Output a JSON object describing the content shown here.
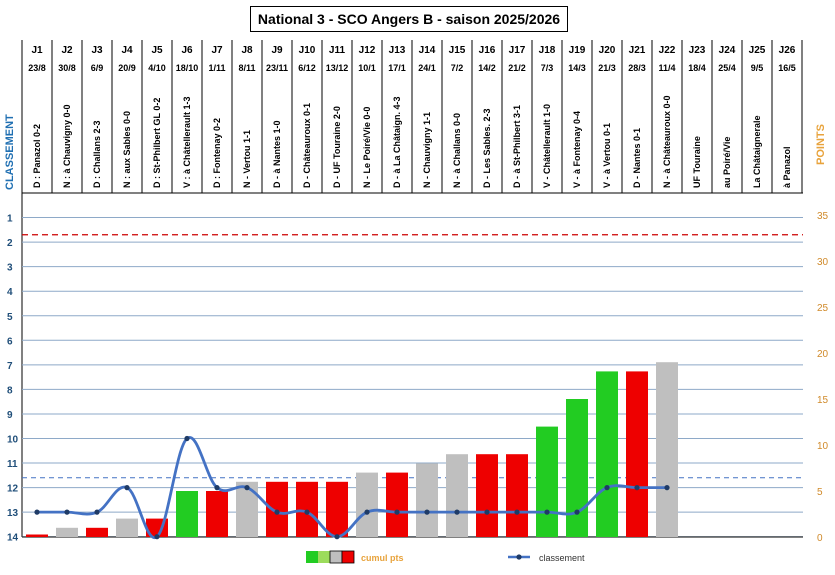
{
  "title": "National 3 - SCO Angers B - saison 2025/2026",
  "left_axis_label": "CLASSEMENT",
  "right_axis_label": "POINTS",
  "legend": {
    "bars_label": "cumul pts",
    "line_label": "classement"
  },
  "colors": {
    "win": "#22cc22",
    "draw": "#bfbfbf",
    "loss": "#ee0000",
    "line": "#4472c4",
    "danger": "#cc0000",
    "grid": "#8ea9c8"
  },
  "chart_data": {
    "type": "bar+line",
    "left_axis": {
      "label": "CLASSEMENT",
      "range": [
        0,
        14
      ],
      "reversed": true,
      "ticks": [
        1,
        2,
        3,
        4,
        5,
        6,
        7,
        8,
        9,
        10,
        11,
        12,
        13,
        14
      ]
    },
    "right_axis": {
      "label": "POINTS",
      "range": [
        0,
        35
      ],
      "ticks": [
        0,
        5,
        10,
        15,
        20,
        25,
        30,
        35
      ]
    },
    "grid": true,
    "reference_lines": [
      {
        "axis": "left",
        "value": 1.7,
        "style": "dashed",
        "color": "#cc0000"
      },
      {
        "axis": "left",
        "value": 11.6,
        "style": "dashed",
        "color": "#4472c4"
      }
    ],
    "journees": [
      {
        "j": "J1",
        "date": "23/8",
        "match": "D : Panazol 0-2",
        "result": "D",
        "points": 0,
        "rank": 13
      },
      {
        "j": "J2",
        "date": "30/8",
        "match": "N : à Chauvigny 0-0",
        "result": "N",
        "points": 1,
        "rank": 13
      },
      {
        "j": "J3",
        "date": "6/9",
        "match": "D : Challans 2-3",
        "result": "D",
        "points": 1,
        "rank": 13
      },
      {
        "j": "J4",
        "date": "20/9",
        "match": "N : aux Sables 0-0",
        "result": "N",
        "points": 2,
        "rank": 12
      },
      {
        "j": "J5",
        "date": "4/10",
        "match": "D : St-Philbert GL 0-2",
        "result": "D",
        "points": 2,
        "rank": 14
      },
      {
        "j": "J6",
        "date": "18/10",
        "match": "V : à Châtellerault 1-3",
        "result": "V",
        "points": 5,
        "rank": 10
      },
      {
        "j": "J7",
        "date": "1/11",
        "match": "D : Fontenay 0-2",
        "result": "D",
        "points": 5,
        "rank": 12
      },
      {
        "j": "J8",
        "date": "8/11",
        "match": "N - Vertou 1-1",
        "result": "N",
        "points": 6,
        "rank": 12
      },
      {
        "j": "J9",
        "date": "23/11",
        "match": "D - à Nantes 1-0",
        "result": "D",
        "points": 6,
        "rank": 13
      },
      {
        "j": "J10",
        "date": "6/12",
        "match": "D - Châteauroux 0-1",
        "result": "D",
        "points": 6,
        "rank": 13
      },
      {
        "j": "J11",
        "date": "13/12",
        "match": "D - UF Touraine 2-0",
        "result": "D",
        "points": 6,
        "rank": 14
      },
      {
        "j": "J12",
        "date": "10/1",
        "match": "N - Le Poiré/Vie 0-0",
        "result": "N",
        "points": 7,
        "rank": 13
      },
      {
        "j": "J13",
        "date": "17/1",
        "match": "D - à La Châtaign. 4-3",
        "result": "D",
        "points": 7,
        "rank": 13
      },
      {
        "j": "J14",
        "date": "24/1",
        "match": "N - Chauvigny 1-1",
        "result": "N",
        "points": 8,
        "rank": 13
      },
      {
        "j": "J15",
        "date": "7/2",
        "match": "N - à Challans 0-0",
        "result": "N",
        "points": 9,
        "rank": 13
      },
      {
        "j": "J16",
        "date": "14/2",
        "match": "D - Les Sables. 2-3",
        "result": "D",
        "points": 9,
        "rank": 13
      },
      {
        "j": "J17",
        "date": "21/2",
        "match": "D - à St-Philbert 3-1",
        "result": "D",
        "points": 9,
        "rank": 13
      },
      {
        "j": "J18",
        "date": "7/3",
        "match": "V - Châtellerault 1-0",
        "result": "V",
        "points": 12,
        "rank": 13
      },
      {
        "j": "J19",
        "date": "14/3",
        "match": "V - à Fontenay 0-4",
        "result": "V",
        "points": 15,
        "rank": 13
      },
      {
        "j": "J20",
        "date": "21/3",
        "match": "V - à Vertou 0-1",
        "result": "V",
        "points": 18,
        "rank": 12
      },
      {
        "j": "J21",
        "date": "28/3",
        "match": "D - Nantes 0-1",
        "result": "D",
        "points": 18,
        "rank": 12
      },
      {
        "j": "J22",
        "date": "11/4",
        "match": "N - à Châteauroux 0-0",
        "result": "N",
        "points": 19,
        "rank": 12
      },
      {
        "j": "J23",
        "date": "18/4",
        "match": "UF Touraine",
        "result": "",
        "points": null,
        "rank": null
      },
      {
        "j": "J24",
        "date": "25/4",
        "match": "au Poiré/Vie",
        "result": "",
        "points": null,
        "rank": null
      },
      {
        "j": "J25",
        "date": "9/5",
        "match": "La Châtaignerale",
        "result": "",
        "points": null,
        "rank": null
      },
      {
        "j": "J26",
        "date": "16/5",
        "match": "à Panazol",
        "result": "",
        "points": null,
        "rank": null
      }
    ]
  }
}
